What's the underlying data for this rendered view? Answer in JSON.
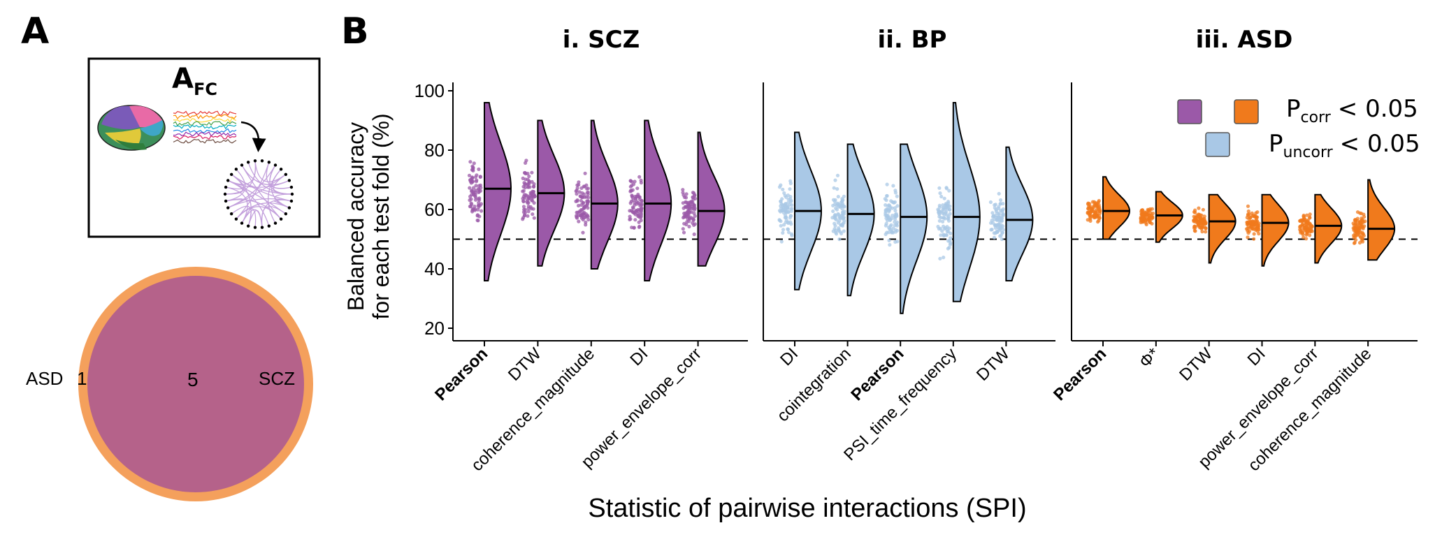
{
  "panel_a": {
    "letter": "A",
    "afc_main": "A",
    "afc_sub": "FC",
    "venn": {
      "left_set": "ASD",
      "left_only": "1",
      "intersection": "5",
      "right_set": "SCZ",
      "colors": {
        "outer": "#f4a05c",
        "inner": "#b5628a"
      }
    }
  },
  "panel_b": {
    "letter": "B"
  },
  "legend": {
    "corr_label_main": "P",
    "corr_label_sub": "corr",
    "corr_label_rest": "< 0.05",
    "uncorr_label_main": "P",
    "uncorr_label_sub": "uncorr",
    "uncorr_label_rest": "< 0.05",
    "colors": {
      "scz": "#9b59a8",
      "asd": "#f07a1c",
      "bp": "#a9c8e6"
    }
  },
  "axes": {
    "ylabel_line1": "Balanced accuracy",
    "ylabel_line2": "for each test fold (%)",
    "xlabel": "Statistic of pairwise interactions (SPI)",
    "yticks": [
      "20",
      "40",
      "60",
      "80",
      "100"
    ]
  },
  "chart_data": [
    {
      "type": "violin",
      "title": "i. SCZ",
      "color": "#9b59a8",
      "chance_level": 50,
      "ylim": [
        20,
        100
      ],
      "categories": [
        "Pearson",
        "DTW",
        "coherence_magnitude",
        "DI",
        "power_envelope_corr"
      ],
      "bold_categories": [
        "Pearson"
      ],
      "medians": [
        67,
        65.5,
        62,
        62,
        59.5
      ],
      "min": [
        36,
        41,
        40,
        36,
        41
      ],
      "max": [
        96,
        90,
        90,
        90,
        86
      ]
    },
    {
      "type": "violin",
      "title": "ii. BP",
      "color": "#a9c8e6",
      "chance_level": 50,
      "ylim": [
        20,
        100
      ],
      "categories": [
        "DI",
        "cointegration",
        "Pearson",
        "PSI_time_frequency",
        "DTW"
      ],
      "bold_categories": [
        "Pearson"
      ],
      "medians": [
        59.5,
        58.5,
        57.5,
        57.5,
        56.5
      ],
      "min": [
        33,
        31,
        25,
        29,
        36
      ],
      "max": [
        86,
        82,
        82,
        96,
        81
      ]
    },
    {
      "type": "violin",
      "title": "iii. ASD",
      "color": "#f07a1c",
      "chance_level": 50,
      "ylim": [
        20,
        100
      ],
      "categories": [
        "Pearson",
        "Φ*",
        "DTW",
        "DI",
        "power_envelope_corr",
        "coherence_magnitude"
      ],
      "bold_categories": [
        "Pearson"
      ],
      "medians": [
        59.5,
        58,
        56,
        55.5,
        54.5,
        53.5
      ],
      "min": [
        50,
        49,
        42,
        41,
        42,
        43
      ],
      "max": [
        71,
        66,
        65,
        65,
        65,
        70
      ]
    }
  ]
}
